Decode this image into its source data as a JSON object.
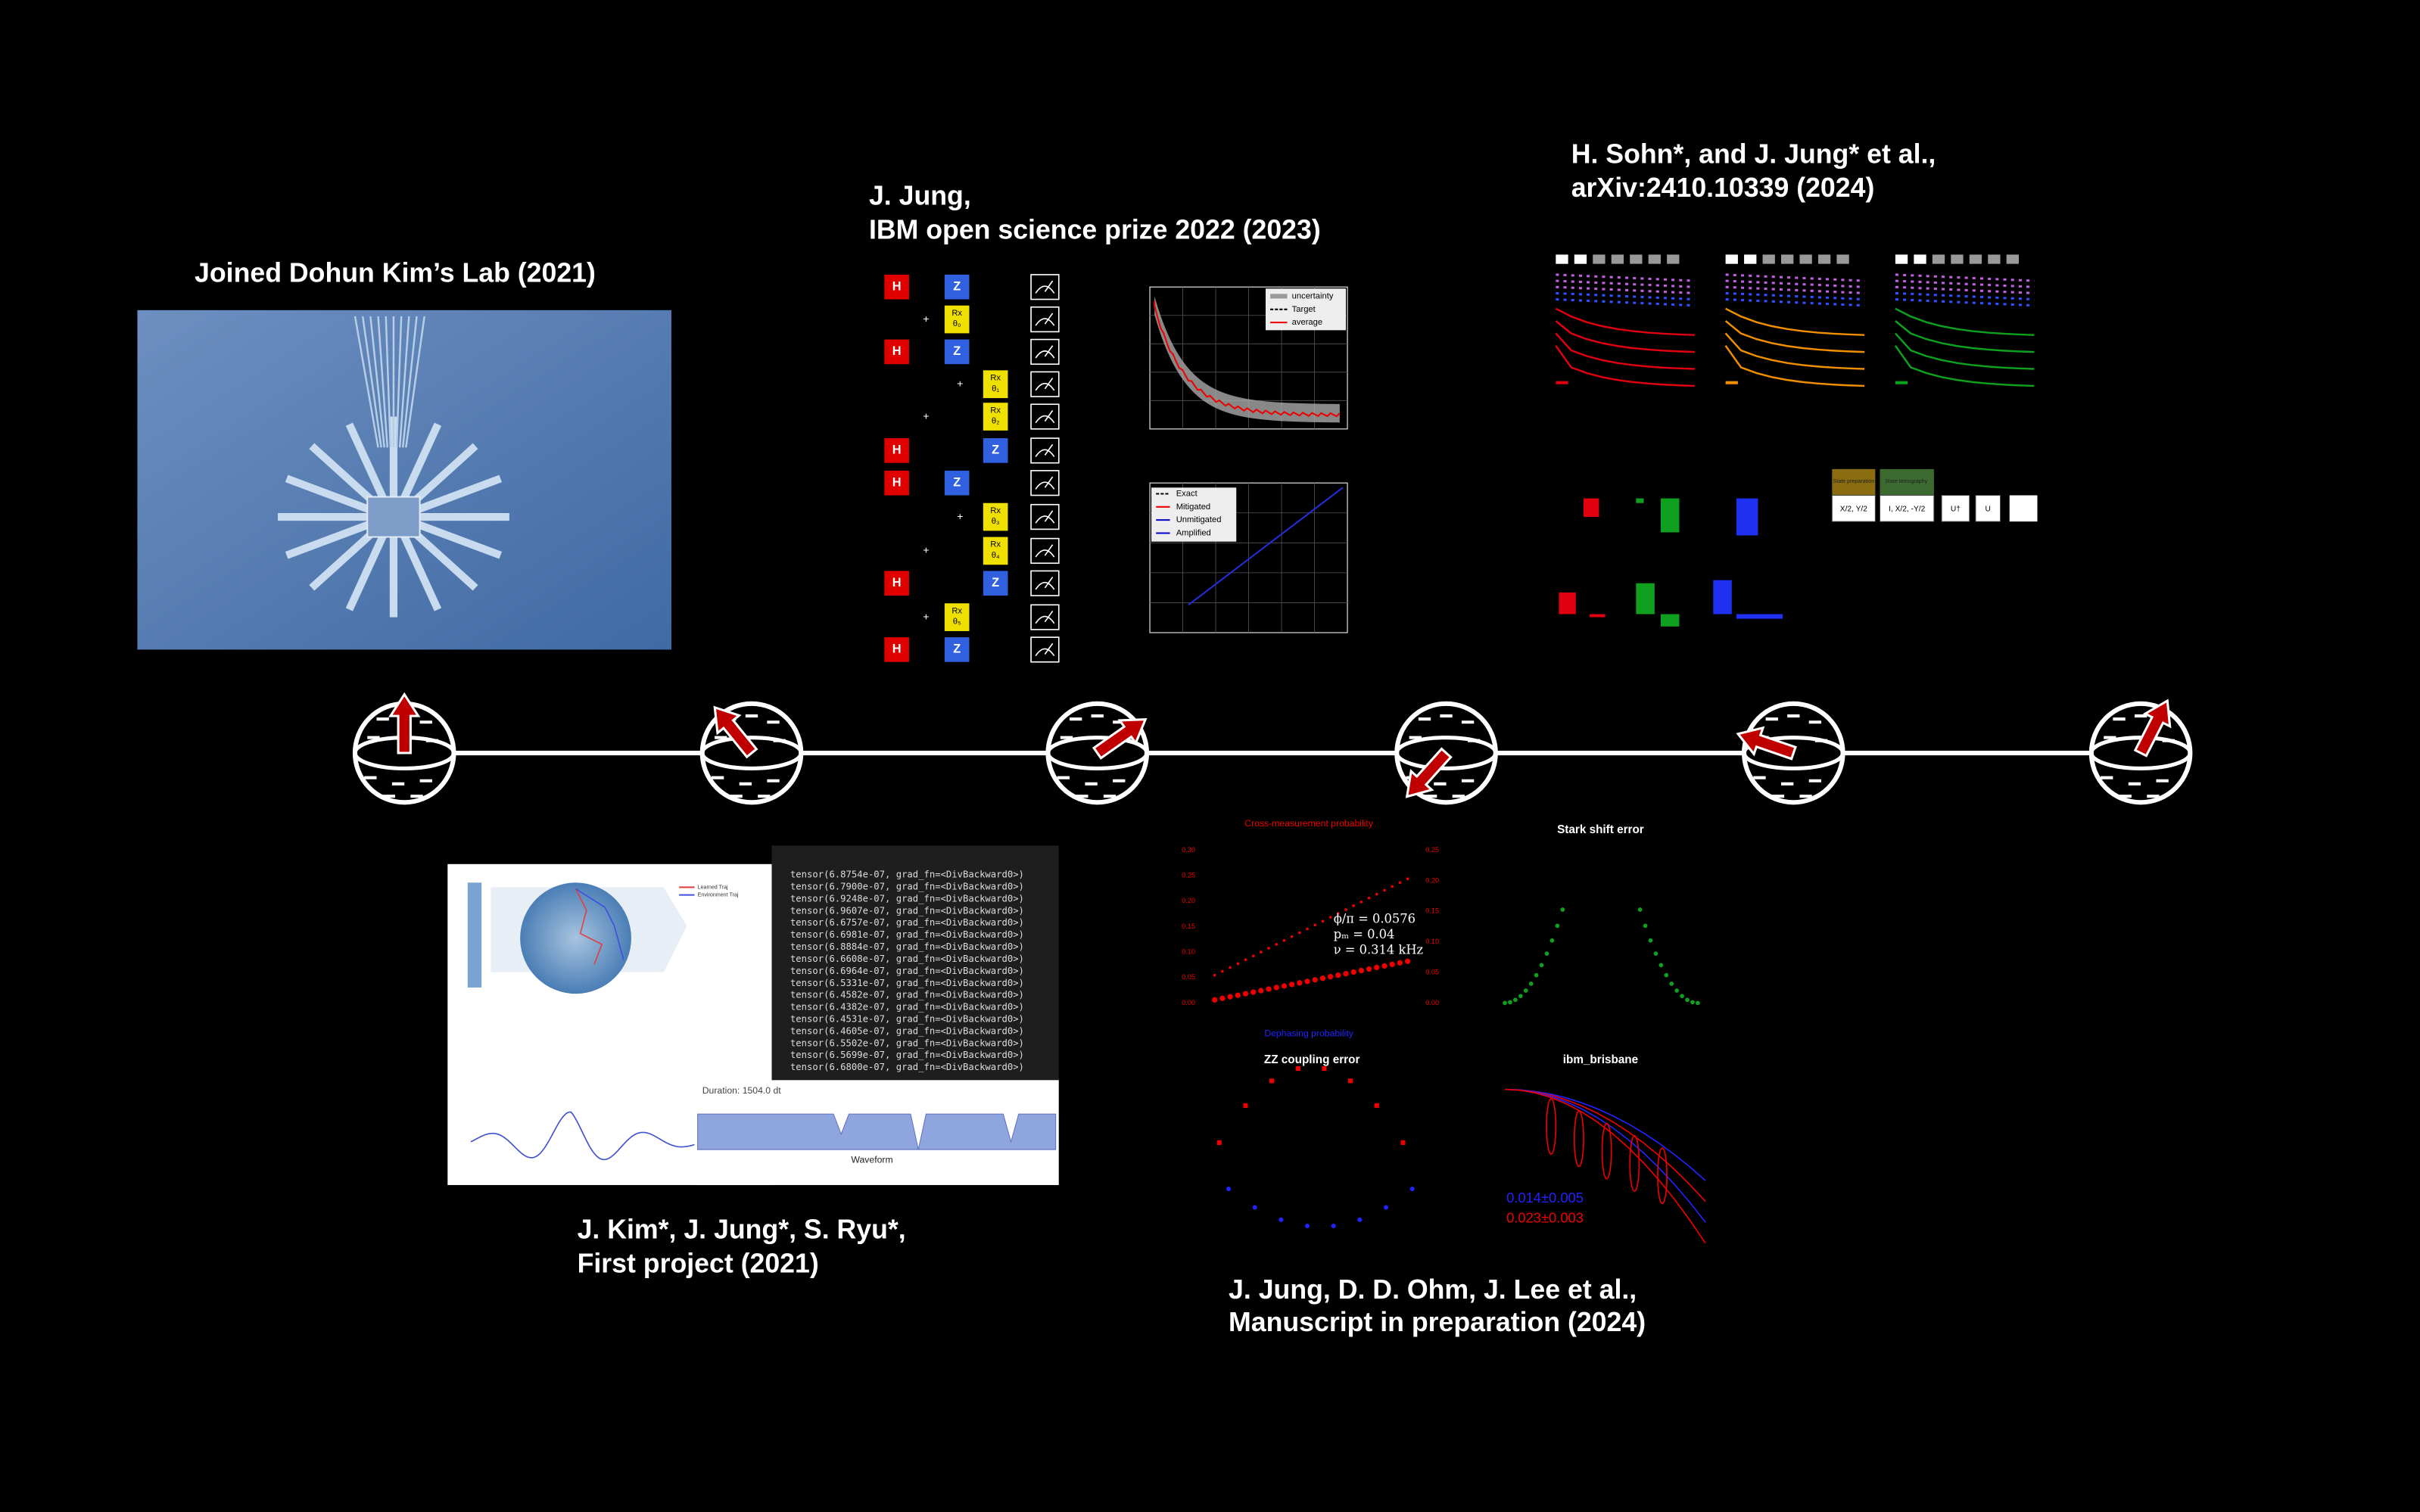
{
  "captions": {
    "lab": "Joined Dohun Kim’s Lab (2021)",
    "ibm": [
      "J. Jung,",
      "IBM open science prize 2022 (2023)"
    ],
    "sohn": [
      "H. Sohn*, and J. Jung* et al.,",
      "arXiv:2410.10339 (2024)"
    ],
    "kim": [
      "J. Kim*, J. Jung*, S. Ryu*,",
      "First project (2021)"
    ],
    "jung": [
      "J. Jung, D. D. Ohm, J. Lee et al.,",
      "Manuscript in preparation (2024)"
    ]
  },
  "circuit": {
    "rows": [
      {
        "gate": "H",
        "second": "Z"
      },
      {
        "plus": "+",
        "gate": "Rx",
        "param": "θ₀"
      },
      {
        "gate": "H",
        "second": "Z"
      },
      {
        "plus": "+",
        "gate": "Rx",
        "param": "θ₁"
      },
      {
        "plus": "+",
        "gate": "Rx",
        "param": "θ₂"
      },
      {
        "gate": "H",
        "second": "Z"
      },
      {
        "gate": "H",
        "second": "Z"
      },
      {
        "plus": "+",
        "gate": "Rx",
        "param": "θ₃"
      },
      {
        "plus": "+",
        "gate": "Rx",
        "param": "θ₄"
      },
      {
        "gate": "H",
        "second": "Z"
      },
      {
        "plus": "+",
        "gate": "Rx",
        "param": "θ₅"
      },
      {
        "gate": "H",
        "second": "Z"
      }
    ]
  },
  "ibm_plots": {
    "top_legend": [
      "uncertainty",
      "Target",
      "average"
    ],
    "bottom_legend": [
      "Exact",
      "Mitigated",
      "Unmitigated",
      "Amplified"
    ]
  },
  "sohn_labels": {
    "prep": "State preparation",
    "tomo": "State tomography",
    "boxes": [
      "X/2, Y/2",
      "I, X/2, -Y/2",
      "U†",
      "U"
    ]
  },
  "first_project": {
    "legend": [
      "Learned Traj",
      "Environment Traj"
    ],
    "console": [
      "tensor(6.8754e-07, grad_fn=<DivBackward0>)",
      "tensor(6.7900e-07, grad_fn=<DivBackward0>)",
      "tensor(6.9248e-07, grad_fn=<DivBackward0>)",
      "tensor(6.9607e-07, grad_fn=<DivBackward0>)",
      "tensor(6.6757e-07, grad_fn=<DivBackward0>)",
      "tensor(6.6981e-07, grad_fn=<DivBackward0>)",
      "tensor(6.8884e-07, grad_fn=<DivBackward0>)",
      "tensor(6.6608e-07, grad_fn=<DivBackward0>)",
      "tensor(6.6964e-07, grad_fn=<DivBackward0>)",
      "tensor(6.5331e-07, grad_fn=<DivBackward0>)",
      "tensor(6.4582e-07, grad_fn=<DivBackward0>)",
      "tensor(6.4382e-07, grad_fn=<DivBackward0>)",
      "tensor(6.4531e-07, grad_fn=<DivBackward0>)",
      "tensor(6.4605e-07, grad_fn=<DivBackward0>)",
      "tensor(6.5502e-07, grad_fn=<DivBackward0>)",
      "tensor(6.5699e-07, grad_fn=<DivBackward0>)",
      "tensor(6.6800e-07, grad_fn=<DivBackward0>)"
    ],
    "duration": "Duration: 1504.0 dt",
    "waveform": "Waveform"
  },
  "manuscript": {
    "cross": "Cross-measurement probability",
    "dephasing": "Dephasing probability",
    "left_ticks": [
      "0.30",
      "0.25",
      "0.20",
      "0.15",
      "0.10",
      "0.05",
      "0.00"
    ],
    "right_ticks": [
      "0.25",
      "0.20",
      "0.15",
      "0.10",
      "0.05",
      "0.00"
    ],
    "annot": [
      "ϕ/π = 0.0576",
      "pₘ = 0.04",
      "ν = 0.314 kHz"
    ],
    "stark": "Stark shift error",
    "zz": "ZZ coupling error",
    "brisbane": "ibm_brisbane",
    "fits": [
      "0.014±0.005",
      "0.023±0.003"
    ]
  }
}
